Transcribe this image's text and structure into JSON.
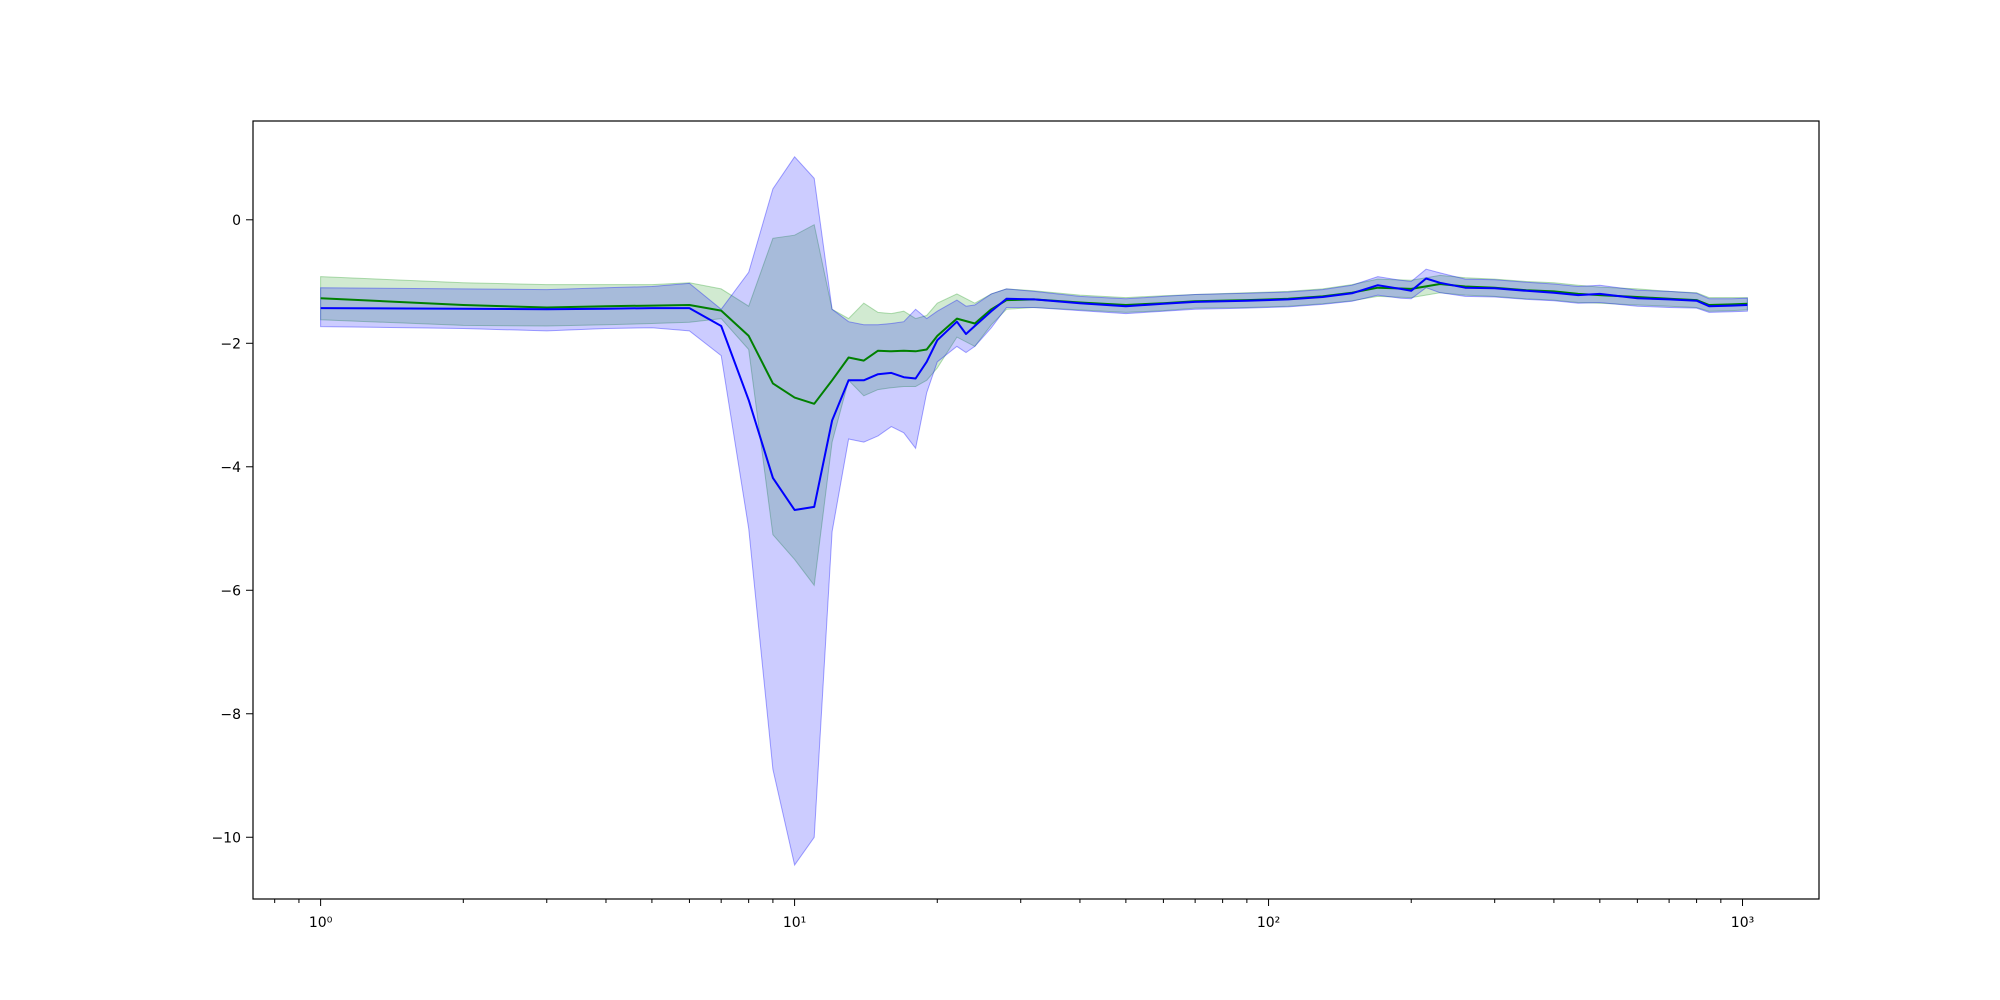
{
  "chart_data": {
    "type": "line",
    "title": "",
    "xlabel": "",
    "ylabel": "",
    "xscale": "log",
    "xlim": [
      0.72,
      1450
    ],
    "ylim": [
      -11.0,
      1.6
    ],
    "grid": false,
    "legend": "none",
    "x_ticks": [
      {
        "value": 1,
        "label": "10⁰"
      },
      {
        "value": 10,
        "label": "10¹"
      },
      {
        "value": 100,
        "label": "10²"
      },
      {
        "value": 1000,
        "label": "10³"
      }
    ],
    "y_ticks": [
      {
        "value": 0,
        "label": "0"
      },
      {
        "value": -2,
        "label": "−2"
      },
      {
        "value": -4,
        "label": "−4"
      },
      {
        "value": -6,
        "label": "−6"
      },
      {
        "value": -8,
        "label": "−8"
      },
      {
        "value": -10,
        "label": "−10"
      }
    ],
    "series": [
      {
        "color": "#008000",
        "band_color": "#2ca02c",
        "band_opacity": 0.22,
        "points": [
          [
            1,
            -1.27,
            -1.62,
            -0.92
          ],
          [
            2,
            -1.38,
            -1.71,
            -1.02
          ],
          [
            3,
            -1.42,
            -1.72,
            -1.05
          ],
          [
            4,
            -1.4,
            -1.7,
            -1.05
          ],
          [
            5,
            -1.39,
            -1.68,
            -1.05
          ],
          [
            6,
            -1.38,
            -1.66,
            -1.02
          ],
          [
            7,
            -1.47,
            -1.6,
            -1.12
          ],
          [
            8,
            -1.88,
            -2.1,
            -1.4
          ],
          [
            9,
            -2.65,
            -5.1,
            -0.3
          ],
          [
            10,
            -2.88,
            -5.5,
            -0.25
          ],
          [
            11,
            -2.98,
            -5.92,
            -0.08
          ],
          [
            12,
            -2.6,
            -3.6,
            -1.45
          ],
          [
            13,
            -2.23,
            -2.6,
            -1.6
          ],
          [
            14,
            -2.28,
            -2.85,
            -1.35
          ],
          [
            15,
            -2.12,
            -2.75,
            -1.5
          ],
          [
            16,
            -2.13,
            -2.72,
            -1.52
          ],
          [
            17,
            -2.12,
            -2.7,
            -1.48
          ],
          [
            18,
            -2.13,
            -2.7,
            -1.6
          ],
          [
            19,
            -2.1,
            -2.6,
            -1.55
          ],
          [
            20,
            -1.88,
            -2.4,
            -1.35
          ],
          [
            22,
            -1.6,
            -1.9,
            -1.2
          ],
          [
            24,
            -1.68,
            -2.05,
            -1.35
          ],
          [
            26,
            -1.45,
            -1.7,
            -1.2
          ],
          [
            28,
            -1.3,
            -1.45,
            -1.12
          ],
          [
            32,
            -1.29,
            -1.42,
            -1.15
          ],
          [
            40,
            -1.34,
            -1.46,
            -1.22
          ],
          [
            50,
            -1.38,
            -1.5,
            -1.26
          ],
          [
            60,
            -1.35,
            -1.47,
            -1.23
          ],
          [
            70,
            -1.32,
            -1.43,
            -1.21
          ],
          [
            90,
            -1.3,
            -1.42,
            -1.18
          ],
          [
            110,
            -1.28,
            -1.4,
            -1.16
          ],
          [
            130,
            -1.24,
            -1.36,
            -1.12
          ],
          [
            150,
            -1.18,
            -1.31,
            -1.05
          ],
          [
            170,
            -1.1,
            -1.24,
            -0.96
          ],
          [
            200,
            -1.12,
            -1.26,
            -0.98
          ],
          [
            230,
            -1.04,
            -1.18,
            -0.9
          ],
          [
            260,
            -1.08,
            -1.22,
            -0.94
          ],
          [
            300,
            -1.1,
            -1.24,
            -0.96
          ],
          [
            350,
            -1.14,
            -1.28,
            -1.0
          ],
          [
            400,
            -1.16,
            -1.3,
            -1.02
          ],
          [
            450,
            -1.2,
            -1.34,
            -1.06
          ],
          [
            500,
            -1.22,
            -1.35,
            -1.09
          ],
          [
            600,
            -1.25,
            -1.38,
            -1.12
          ],
          [
            700,
            -1.28,
            -1.4,
            -1.16
          ],
          [
            800,
            -1.3,
            -1.42,
            -1.18
          ],
          [
            850,
            -1.38,
            -1.48,
            -1.26
          ],
          [
            950,
            -1.37,
            -1.47,
            -1.26
          ],
          [
            1024,
            -1.36,
            -1.46,
            -1.26
          ]
        ]
      },
      {
        "color": "#0000ff",
        "band_color": "#0000ff",
        "band_opacity": 0.2,
        "points": [
          [
            1,
            -1.43,
            -1.73,
            -1.1
          ],
          [
            2,
            -1.44,
            -1.76,
            -1.12
          ],
          [
            3,
            -1.45,
            -1.8,
            -1.13
          ],
          [
            4,
            -1.44,
            -1.76,
            -1.1
          ],
          [
            5,
            -1.43,
            -1.75,
            -1.08
          ],
          [
            6,
            -1.43,
            -1.8,
            -1.03
          ],
          [
            7,
            -1.72,
            -2.2,
            -1.45
          ],
          [
            8,
            -2.92,
            -5.0,
            -0.85
          ],
          [
            9,
            -4.18,
            -8.9,
            0.5
          ],
          [
            10,
            -4.7,
            -10.45,
            1.02
          ],
          [
            11,
            -4.65,
            -10.0,
            0.67
          ],
          [
            12,
            -3.25,
            -5.05,
            -1.45
          ],
          [
            13,
            -2.6,
            -3.55,
            -1.65
          ],
          [
            14,
            -2.6,
            -3.6,
            -1.7
          ],
          [
            15,
            -2.5,
            -3.5,
            -1.7
          ],
          [
            16,
            -2.48,
            -3.35,
            -1.68
          ],
          [
            17,
            -2.55,
            -3.45,
            -1.65
          ],
          [
            18,
            -2.57,
            -3.7,
            -1.45
          ],
          [
            19,
            -2.3,
            -2.8,
            -1.6
          ],
          [
            20,
            -1.95,
            -2.3,
            -1.48
          ],
          [
            22,
            -1.65,
            -2.05,
            -1.3
          ],
          [
            23,
            -1.85,
            -2.15,
            -1.4
          ],
          [
            24,
            -1.72,
            -2.05,
            -1.38
          ],
          [
            26,
            -1.48,
            -1.75,
            -1.2
          ],
          [
            28,
            -1.28,
            -1.42,
            -1.12
          ],
          [
            32,
            -1.29,
            -1.42,
            -1.16
          ],
          [
            40,
            -1.35,
            -1.47,
            -1.24
          ],
          [
            50,
            -1.4,
            -1.52,
            -1.28
          ],
          [
            60,
            -1.36,
            -1.48,
            -1.24
          ],
          [
            70,
            -1.33,
            -1.45,
            -1.21
          ],
          [
            90,
            -1.31,
            -1.43,
            -1.19
          ],
          [
            110,
            -1.29,
            -1.41,
            -1.17
          ],
          [
            130,
            -1.25,
            -1.37,
            -1.13
          ],
          [
            150,
            -1.19,
            -1.32,
            -1.06
          ],
          [
            170,
            -1.06,
            -1.22,
            -0.92
          ],
          [
            190,
            -1.12,
            -1.27,
            -0.98
          ],
          [
            200,
            -1.15,
            -1.28,
            -1.0
          ],
          [
            215,
            -0.95,
            -1.1,
            -0.8
          ],
          [
            230,
            -1.02,
            -1.18,
            -0.86
          ],
          [
            260,
            -1.1,
            -1.24,
            -0.96
          ],
          [
            300,
            -1.11,
            -1.25,
            -0.97
          ],
          [
            350,
            -1.15,
            -1.29,
            -1.01
          ],
          [
            400,
            -1.18,
            -1.31,
            -1.04
          ],
          [
            450,
            -1.22,
            -1.35,
            -1.08
          ],
          [
            500,
            -1.2,
            -1.34,
            -1.06
          ],
          [
            600,
            -1.27,
            -1.4,
            -1.14
          ],
          [
            700,
            -1.29,
            -1.42,
            -1.16
          ],
          [
            800,
            -1.31,
            -1.43,
            -1.19
          ],
          [
            850,
            -1.4,
            -1.5,
            -1.28
          ],
          [
            950,
            -1.39,
            -1.49,
            -1.28
          ],
          [
            1024,
            -1.38,
            -1.48,
            -1.27
          ]
        ]
      }
    ]
  }
}
